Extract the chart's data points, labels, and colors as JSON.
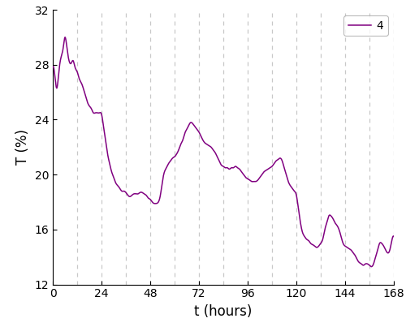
{
  "xlabel": "t (hours)",
  "ylabel": "T (%)",
  "xlim": [
    0,
    168
  ],
  "ylim": [
    12,
    32
  ],
  "xticks": [
    0,
    24,
    48,
    72,
    96,
    120,
    144,
    168
  ],
  "yticks": [
    12,
    16,
    20,
    24,
    28,
    32
  ],
  "vlines": [
    12,
    24,
    36,
    48,
    60,
    72,
    84,
    96,
    108,
    120,
    132,
    144,
    156,
    168
  ],
  "line_color": "#800080",
  "legend_label": "4",
  "background_color": "#ffffff",
  "line_width": 1.1,
  "keypoints": [
    [
      0,
      27.8
    ],
    [
      1,
      27.2
    ],
    [
      2,
      26.3
    ],
    [
      3,
      27.5
    ],
    [
      4,
      28.5
    ],
    [
      5,
      29.1
    ],
    [
      6,
      30.0
    ],
    [
      7,
      29.2
    ],
    [
      8,
      28.3
    ],
    [
      9,
      28.1
    ],
    [
      10,
      28.3
    ],
    [
      11,
      27.8
    ],
    [
      12,
      27.5
    ],
    [
      13,
      27.0
    ],
    [
      14,
      26.7
    ],
    [
      15,
      26.3
    ],
    [
      16,
      25.8
    ],
    [
      17,
      25.3
    ],
    [
      18,
      25.0
    ],
    [
      19,
      24.8
    ],
    [
      20,
      24.5
    ],
    [
      21,
      24.5
    ],
    [
      22,
      24.5
    ],
    [
      23,
      24.5
    ],
    [
      24,
      24.4
    ],
    [
      25,
      23.5
    ],
    [
      26,
      22.5
    ],
    [
      27,
      21.5
    ],
    [
      28,
      20.8
    ],
    [
      29,
      20.2
    ],
    [
      30,
      19.8
    ],
    [
      31,
      19.4
    ],
    [
      32,
      19.2
    ],
    [
      33,
      19.0
    ],
    [
      34,
      18.8
    ],
    [
      35,
      18.8
    ],
    [
      36,
      18.7
    ],
    [
      37,
      18.5
    ],
    [
      38,
      18.4
    ],
    [
      39,
      18.5
    ],
    [
      40,
      18.6
    ],
    [
      41,
      18.6
    ],
    [
      42,
      18.6
    ],
    [
      43,
      18.7
    ],
    [
      44,
      18.7
    ],
    [
      45,
      18.6
    ],
    [
      46,
      18.5
    ],
    [
      47,
      18.3
    ],
    [
      48,
      18.2
    ],
    [
      49,
      18.0
    ],
    [
      50,
      17.9
    ],
    [
      51,
      17.9
    ],
    [
      52,
      18.0
    ],
    [
      53,
      18.5
    ],
    [
      54,
      19.5
    ],
    [
      55,
      20.2
    ],
    [
      56,
      20.5
    ],
    [
      57,
      20.8
    ],
    [
      58,
      21.0
    ],
    [
      59,
      21.2
    ],
    [
      60,
      21.3
    ],
    [
      61,
      21.5
    ],
    [
      62,
      21.8
    ],
    [
      63,
      22.2
    ],
    [
      64,
      22.5
    ],
    [
      65,
      23.0
    ],
    [
      66,
      23.3
    ],
    [
      67,
      23.6
    ],
    [
      68,
      23.8
    ],
    [
      69,
      23.7
    ],
    [
      70,
      23.5
    ],
    [
      71,
      23.3
    ],
    [
      72,
      23.1
    ],
    [
      73,
      22.8
    ],
    [
      74,
      22.5
    ],
    [
      75,
      22.3
    ],
    [
      76,
      22.2
    ],
    [
      77,
      22.1
    ],
    [
      78,
      22.0
    ],
    [
      79,
      21.8
    ],
    [
      80,
      21.6
    ],
    [
      81,
      21.3
    ],
    [
      82,
      21.0
    ],
    [
      83,
      20.7
    ],
    [
      84,
      20.6
    ],
    [
      85,
      20.5
    ],
    [
      86,
      20.5
    ],
    [
      87,
      20.4
    ],
    [
      88,
      20.5
    ],
    [
      89,
      20.5
    ],
    [
      90,
      20.6
    ],
    [
      91,
      20.5
    ],
    [
      92,
      20.4
    ],
    [
      93,
      20.2
    ],
    [
      94,
      20.0
    ],
    [
      95,
      19.8
    ],
    [
      96,
      19.7
    ],
    [
      97,
      19.6
    ],
    [
      98,
      19.5
    ],
    [
      99,
      19.5
    ],
    [
      100,
      19.5
    ],
    [
      101,
      19.6
    ],
    [
      102,
      19.8
    ],
    [
      103,
      20.0
    ],
    [
      104,
      20.2
    ],
    [
      105,
      20.3
    ],
    [
      106,
      20.4
    ],
    [
      107,
      20.5
    ],
    [
      108,
      20.6
    ],
    [
      109,
      20.8
    ],
    [
      110,
      21.0
    ],
    [
      111,
      21.1
    ],
    [
      112,
      21.2
    ],
    [
      113,
      21.0
    ],
    [
      114,
      20.5
    ],
    [
      115,
      20.0
    ],
    [
      116,
      19.5
    ],
    [
      117,
      19.2
    ],
    [
      118,
      19.0
    ],
    [
      119,
      18.8
    ],
    [
      120,
      18.5
    ],
    [
      121,
      17.5
    ],
    [
      122,
      16.5
    ],
    [
      123,
      15.8
    ],
    [
      124,
      15.5
    ],
    [
      125,
      15.3
    ],
    [
      126,
      15.2
    ],
    [
      127,
      15.0
    ],
    [
      128,
      14.9
    ],
    [
      129,
      14.8
    ],
    [
      130,
      14.7
    ],
    [
      131,
      14.8
    ],
    [
      132,
      15.0
    ],
    [
      133,
      15.3
    ],
    [
      134,
      16.0
    ],
    [
      135,
      16.5
    ],
    [
      136,
      17.0
    ],
    [
      137,
      17.0
    ],
    [
      138,
      16.8
    ],
    [
      139,
      16.5
    ],
    [
      140,
      16.3
    ],
    [
      141,
      16.0
    ],
    [
      142,
      15.5
    ],
    [
      143,
      15.0
    ],
    [
      144,
      14.8
    ],
    [
      145,
      14.7
    ],
    [
      146,
      14.6
    ],
    [
      147,
      14.5
    ],
    [
      148,
      14.3
    ],
    [
      149,
      14.1
    ],
    [
      150,
      13.8
    ],
    [
      151,
      13.6
    ],
    [
      152,
      13.5
    ],
    [
      153,
      13.4
    ],
    [
      154,
      13.5
    ],
    [
      155,
      13.5
    ],
    [
      156,
      13.4
    ],
    [
      157,
      13.3
    ],
    [
      158,
      13.5
    ],
    [
      159,
      14.0
    ],
    [
      160,
      14.5
    ],
    [
      161,
      15.0
    ],
    [
      162,
      15.0
    ],
    [
      163,
      14.8
    ],
    [
      164,
      14.5
    ],
    [
      165,
      14.3
    ],
    [
      166,
      14.5
    ],
    [
      167,
      15.2
    ],
    [
      168,
      15.5
    ]
  ]
}
